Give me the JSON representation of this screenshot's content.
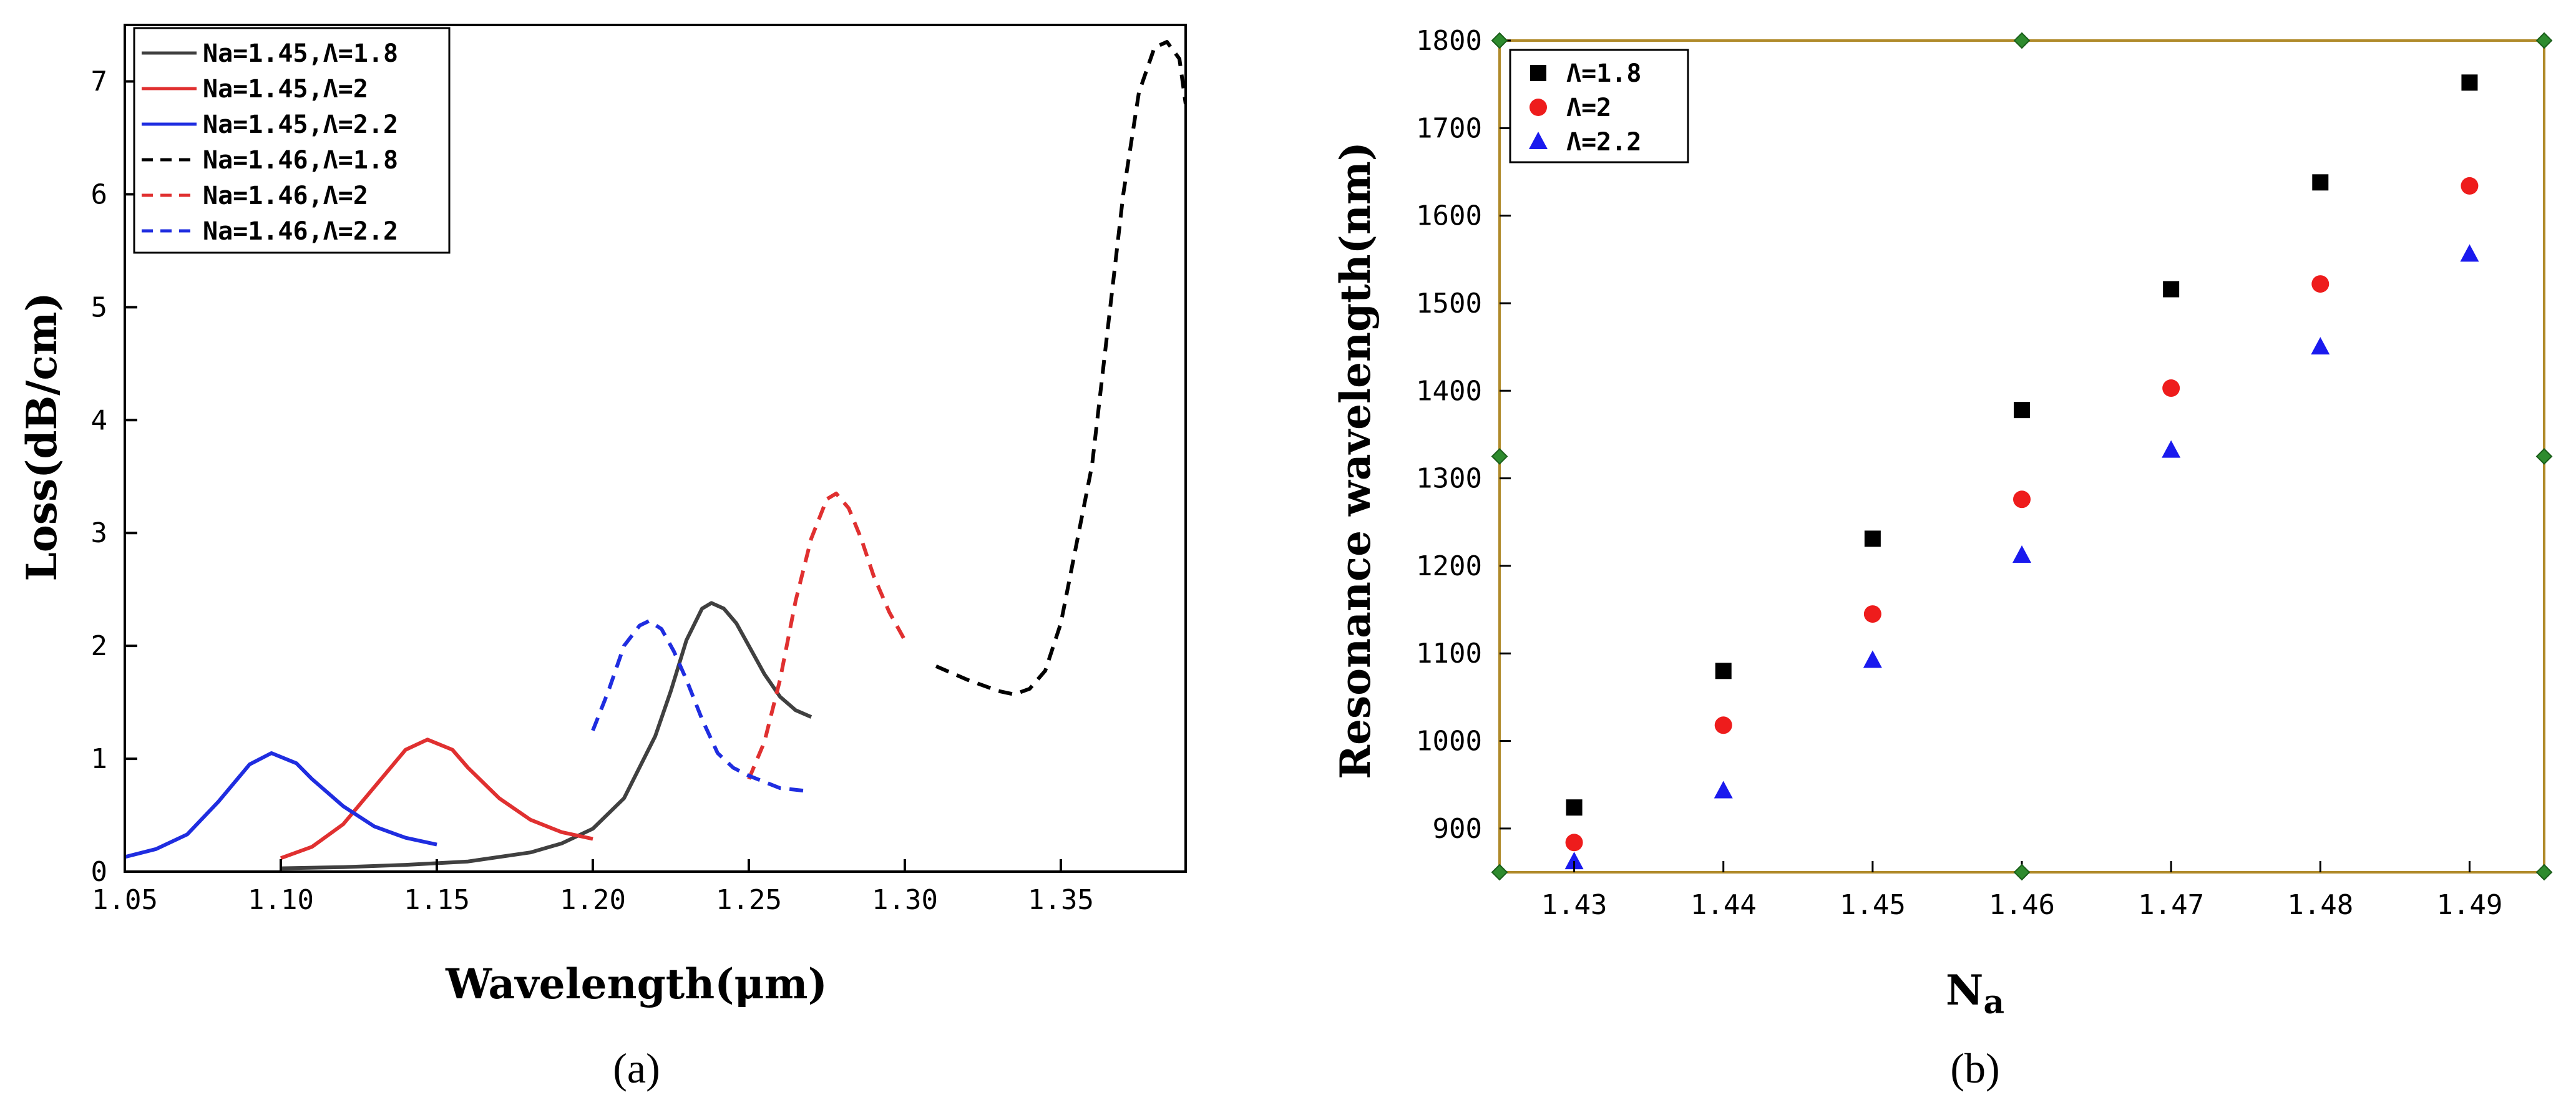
{
  "figure_labels": {
    "a": "(a)",
    "b": "(b)"
  },
  "chart_data": [
    {
      "type": "line",
      "panel": "(a)",
      "xlabel": "Wavelength(μm)",
      "ylabel": "Loss(dB/cm)",
      "xlim": [
        1.05,
        1.39
      ],
      "ylim": [
        0,
        7.5
      ],
      "xticks": [
        1.05,
        1.1,
        1.15,
        1.2,
        1.25,
        1.3,
        1.35
      ],
      "xtick_labels": [
        "1.05",
        "1.10",
        "1.15",
        "1.20",
        "1.25",
        "1.30",
        "1.35"
      ],
      "yticks": [
        0,
        1,
        2,
        3,
        4,
        5,
        6,
        7
      ],
      "ytick_labels": [
        "0",
        "1",
        "2",
        "3",
        "4",
        "5",
        "6",
        "7"
      ],
      "legend_position": "top-left",
      "series": [
        {
          "name": "Na=1.45,Λ=1.8",
          "color": "#404040",
          "dash": "solid",
          "x": [
            1.1,
            1.12,
            1.14,
            1.16,
            1.18,
            1.19,
            1.2,
            1.21,
            1.22,
            1.225,
            1.23,
            1.235,
            1.238,
            1.242,
            1.246,
            1.25,
            1.255,
            1.26,
            1.265,
            1.27
          ],
          "y": [
            0.03,
            0.04,
            0.06,
            0.09,
            0.17,
            0.25,
            0.38,
            0.65,
            1.2,
            1.6,
            2.05,
            2.33,
            2.38,
            2.33,
            2.2,
            2.0,
            1.75,
            1.55,
            1.43,
            1.37
          ]
        },
        {
          "name": "Na=1.45,Λ=2",
          "color": "#e03030",
          "dash": "solid",
          "x": [
            1.1,
            1.11,
            1.12,
            1.13,
            1.14,
            1.147,
            1.155,
            1.16,
            1.17,
            1.18,
            1.19,
            1.2
          ],
          "y": [
            0.12,
            0.22,
            0.42,
            0.75,
            1.08,
            1.17,
            1.08,
            0.92,
            0.65,
            0.46,
            0.35,
            0.29
          ]
        },
        {
          "name": "Na=1.45,Λ=2.2",
          "color": "#1f2de0",
          "dash": "solid",
          "x": [
            1.05,
            1.06,
            1.07,
            1.08,
            1.09,
            1.097,
            1.105,
            1.11,
            1.12,
            1.13,
            1.14,
            1.15
          ],
          "y": [
            0.13,
            0.2,
            0.33,
            0.62,
            0.95,
            1.05,
            0.96,
            0.82,
            0.58,
            0.4,
            0.3,
            0.24
          ]
        },
        {
          "name": "Na=1.46,Λ=1.8",
          "color": "#000000",
          "dash": "dashed",
          "x": [
            1.31,
            1.32,
            1.33,
            1.335,
            1.34,
            1.345,
            1.35,
            1.36,
            1.365,
            1.37,
            1.375,
            1.38,
            1.384,
            1.388,
            1.39
          ],
          "y": [
            1.82,
            1.7,
            1.6,
            1.57,
            1.62,
            1.78,
            2.2,
            3.6,
            4.8,
            6.0,
            6.9,
            7.3,
            7.35,
            7.2,
            6.8
          ]
        },
        {
          "name": "Na=1.46,Λ=2",
          "color": "#e03030",
          "dash": "dashed",
          "x": [
            1.25,
            1.255,
            1.26,
            1.265,
            1.27,
            1.275,
            1.278,
            1.282,
            1.286,
            1.29,
            1.295,
            1.3
          ],
          "y": [
            0.82,
            1.15,
            1.7,
            2.4,
            2.95,
            3.3,
            3.35,
            3.22,
            2.95,
            2.62,
            2.3,
            2.05
          ]
        },
        {
          "name": "Na=1.46,Λ=2.2",
          "color": "#1f2de0",
          "dash": "dashed",
          "x": [
            1.2,
            1.205,
            1.21,
            1.215,
            1.218,
            1.222,
            1.226,
            1.23,
            1.235,
            1.24,
            1.245,
            1.25,
            1.26,
            1.27
          ],
          "y": [
            1.25,
            1.6,
            2.0,
            2.18,
            2.22,
            2.15,
            1.95,
            1.7,
            1.35,
            1.05,
            0.92,
            0.85,
            0.74,
            0.71
          ]
        }
      ]
    },
    {
      "type": "scatter",
      "panel": "(b)",
      "xlabel_main": "N",
      "xlabel_sub": "a",
      "ylabel": "Resonance wavelength(nm)",
      "xlim": [
        1.425,
        1.495
      ],
      "ylim": [
        850,
        1800
      ],
      "xticks": [
        1.43,
        1.44,
        1.45,
        1.46,
        1.47,
        1.48,
        1.49
      ],
      "xtick_labels": [
        "1.43",
        "1.44",
        "1.45",
        "1.46",
        "1.47",
        "1.48",
        "1.49"
      ],
      "yticks": [
        900,
        1000,
        1100,
        1200,
        1300,
        1400,
        1500,
        1600,
        1700,
        1800
      ],
      "ytick_labels": [
        "900",
        "1000",
        "1100",
        "1200",
        "1300",
        "1400",
        "1500",
        "1600",
        "1700",
        "1800"
      ],
      "legend_position": "top-left",
      "frame_color": "#b08a2a",
      "handle_color": "#2e8b2e",
      "series": [
        {
          "name": "Λ=1.8",
          "marker": "square",
          "color": "#000000",
          "x": [
            1.43,
            1.44,
            1.45,
            1.46,
            1.47,
            1.48,
            1.49
          ],
          "y": [
            924,
            1080,
            1231,
            1378,
            1516,
            1638,
            1752
          ]
        },
        {
          "name": "Λ=2",
          "marker": "circle",
          "color": "#ee1c1c",
          "x": [
            1.43,
            1.44,
            1.45,
            1.46,
            1.47,
            1.48,
            1.49
          ],
          "y": [
            884,
            1018,
            1145,
            1276,
            1403,
            1522,
            1634
          ]
        },
        {
          "name": "Λ=2.2",
          "marker": "triangle",
          "color": "#1a1aee",
          "x": [
            1.43,
            1.44,
            1.45,
            1.46,
            1.47,
            1.48,
            1.49
          ],
          "y": [
            862,
            943,
            1092,
            1212,
            1332,
            1450,
            1556
          ]
        }
      ]
    }
  ]
}
